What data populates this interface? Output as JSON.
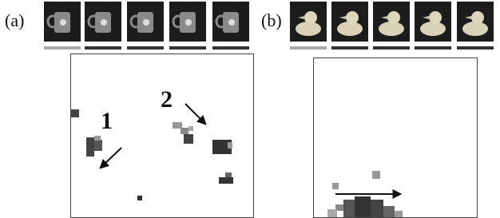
{
  "panels": [
    {
      "label": "(a)",
      "annotations": [
        "1",
        "2"
      ]
    },
    {
      "label": "(b)"
    }
  ]
}
